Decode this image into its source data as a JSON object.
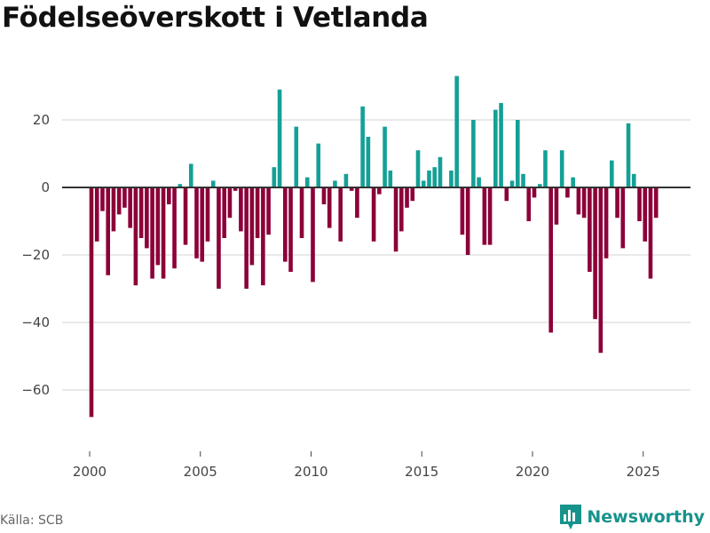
{
  "chart_data": {
    "type": "bar",
    "title": "Födelseöverskott i Vetlanda",
    "xlabel": "",
    "ylabel": "",
    "start_year": 2000,
    "periods_per_year": 4,
    "x_ticks": [
      2000,
      2005,
      2010,
      2015,
      2020,
      2025
    ],
    "y_ticks": [
      20,
      0,
      -20,
      -40,
      -60
    ],
    "y_tick_labels": [
      "20",
      "0",
      "−20",
      "−40",
      "−60"
    ],
    "ylim": [
      -75,
      35
    ],
    "xlim": [
      1999.1,
      2027.1
    ],
    "grid": true,
    "positive_color": "#14a096",
    "negative_color": "#8c0039",
    "values": [
      -68,
      -16,
      -7,
      -26,
      -13,
      -8,
      -6,
      -12,
      -29,
      -15,
      -18,
      -27,
      -23,
      -27,
      -5,
      -24,
      1,
      -17,
      7,
      -21,
      -22,
      -16,
      2,
      -30,
      -15,
      -9,
      -1,
      -13,
      -30,
      -23,
      -15,
      -29,
      -14,
      6,
      29,
      -22,
      -25,
      18,
      -15,
      3,
      -28,
      13,
      -5,
      -12,
      2,
      -16,
      4,
      -1,
      -9,
      24,
      15,
      -16,
      -2,
      18,
      5,
      -19,
      -13,
      -6,
      -4,
      11,
      2,
      5,
      6,
      9,
      0,
      5,
      33,
      -14,
      -20,
      20,
      3,
      -17,
      -17,
      23,
      25,
      -4,
      2,
      20,
      4,
      -10,
      -3,
      1,
      11,
      -43,
      -11,
      11,
      -3,
      3,
      -8,
      -9,
      -25,
      -39,
      -49,
      -21,
      8,
      -9,
      -18,
      19,
      4,
      -10,
      -16,
      -27,
      -9
    ]
  },
  "footer": {
    "source": "Källa: SCB",
    "logo_text": "Newsworthy"
  }
}
